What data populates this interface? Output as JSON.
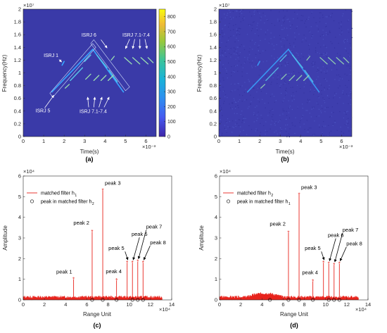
{
  "colors": {
    "spec_bg": "#3a3aa8",
    "spec_line_bright": "#38a6ff",
    "spec_line_mid": "#58c8e8",
    "spec_line_light": "#9be0b0",
    "ann": "#ffffff",
    "stem": "#e8231c",
    "axis": "#262626"
  },
  "chart_data": [
    {
      "id": "a",
      "type": "heatmap",
      "caption": "(a)",
      "xlabel": "Time(s)",
      "ylabel": "Frequency(Hz)",
      "x_exponent": "×10⁻³",
      "y_exponent": "×10⁷",
      "xlim": [
        0,
        6.5
      ],
      "ylim": [
        0,
        2
      ],
      "x_ticks": [
        "0",
        "1",
        "2",
        "3",
        "4",
        "5",
        "6"
      ],
      "y_ticks": [
        "0",
        "0.2",
        "0.4",
        "0.6",
        "0.8",
        "1",
        "1.2",
        "1.4",
        "1.6",
        "1.8",
        "2"
      ],
      "colorbar_ticks": [
        "0",
        "100",
        "200",
        "300",
        "400",
        "500",
        "600",
        "700",
        "800"
      ],
      "colorbar_range": [
        0,
        850
      ],
      "annotations": [
        "ISRJ 1",
        "ISRJ 6",
        "ISRJ 7.1-7.4",
        "ISRJ 5",
        "ISRJ 7.1-7.4"
      ]
    },
    {
      "id": "b",
      "type": "heatmap",
      "caption": "(b)",
      "xlabel": "Time(s)",
      "ylabel": "Frequency(Hz)",
      "x_exponent": "×10⁻³",
      "y_exponent": "×10⁷",
      "xlim": [
        0,
        6.5
      ],
      "ylim": [
        0,
        2
      ],
      "x_ticks": [
        "0",
        "1",
        "2",
        "3",
        "4",
        "5",
        "6"
      ],
      "y_ticks": [
        "0",
        "0.2",
        "0.4",
        "0.6",
        "0.8",
        "1",
        "1.2",
        "1.4",
        "1.6",
        "1.8",
        "2"
      ]
    },
    {
      "id": "c",
      "type": "bar",
      "caption": "(c)",
      "xlabel": "Range Unit",
      "ylabel": "Amplitude",
      "x_exponent": "×10⁴",
      "y_exponent": "×10⁴",
      "xlim": [
        0,
        14
      ],
      "ylim": [
        0,
        6
      ],
      "x_ticks": [
        "0",
        "2",
        "4",
        "6",
        "8",
        "10",
        "12",
        "14"
      ],
      "y_ticks": [
        "0",
        "1",
        "2",
        "3",
        "4",
        "5",
        "6"
      ],
      "legend": {
        "position": "top-left",
        "line": "matched filter h",
        "line_sub": "1",
        "marker": "peak in matched filter h",
        "marker_sub": "2"
      },
      "peaks": [
        {
          "label": "peak 1",
          "x": 4.75,
          "y": 1.0
        },
        {
          "label": "peak 2",
          "x": 6.5,
          "y": 3.3
        },
        {
          "label": "peak 3",
          "x": 7.5,
          "y": 5.3
        },
        {
          "label": "peak 4",
          "x": 8.8,
          "y": 0.95
        },
        {
          "label": "peak 5",
          "x": 9.8,
          "y": 1.8
        },
        {
          "label": "peak 6",
          "x": 10.3,
          "y": 1.8
        },
        {
          "label": "peak 7",
          "x": 10.8,
          "y": 1.85
        },
        {
          "label": "peak 8",
          "x": 11.3,
          "y": 1.8
        }
      ],
      "circles_x": [
        6.5,
        7.5,
        8.8,
        10.3,
        10.8,
        11.3
      ],
      "noise_end": 13.1
    },
    {
      "id": "d",
      "type": "bar",
      "caption": "(d)",
      "xlabel": "Range Unit",
      "ylabel": "Amplitude",
      "x_exponent": "×10⁴",
      "y_exponent": "×10⁴",
      "xlim": [
        0,
        14
      ],
      "ylim": [
        0,
        6
      ],
      "x_ticks": [
        "0",
        "2",
        "4",
        "6",
        "8",
        "10",
        "12",
        "14"
      ],
      "y_ticks": [
        "0",
        "1",
        "2",
        "3",
        "4",
        "5",
        "6"
      ],
      "legend": {
        "position": "top-left",
        "line": "matched filter h",
        "line_sub": "2",
        "marker": "peak in matched filter h",
        "marker_sub": "1"
      },
      "peaks": [
        {
          "label": "peak 2",
          "x": 6.5,
          "y": 3.25
        },
        {
          "label": "peak 3",
          "x": 7.5,
          "y": 5.1
        },
        {
          "label": "peak 4",
          "x": 8.8,
          "y": 0.9
        },
        {
          "label": "peak 5",
          "x": 9.8,
          "y": 1.8
        },
        {
          "label": "peak 6",
          "x": 10.3,
          "y": 1.75
        },
        {
          "label": "peak 7",
          "x": 10.8,
          "y": 1.7
        },
        {
          "label": "peak 8",
          "x": 11.3,
          "y": 1.75
        }
      ],
      "circles_x": [
        4.75,
        6.5,
        7.5,
        8.8,
        10.3,
        10.8,
        11.3
      ],
      "noise_end": 13.1
    }
  ]
}
